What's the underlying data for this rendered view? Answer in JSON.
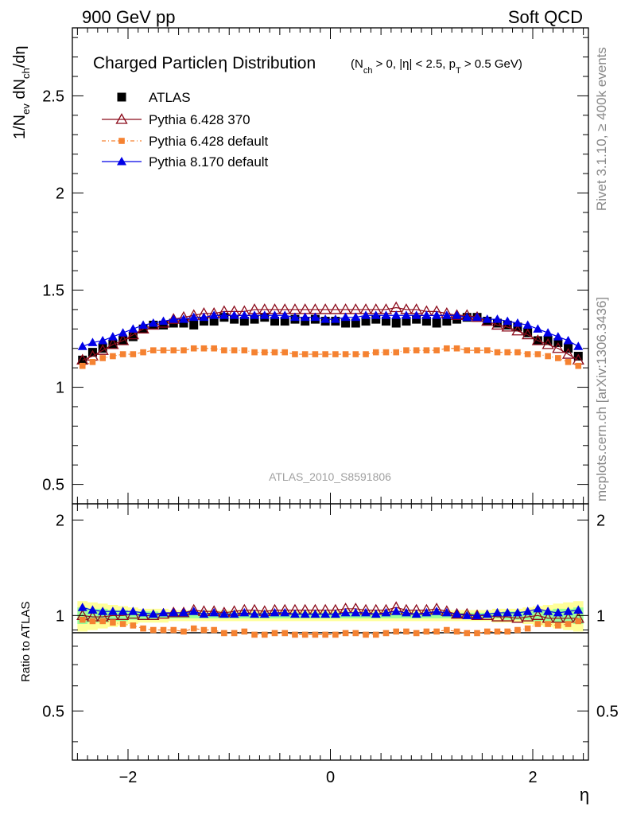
{
  "header": {
    "left": "900 GeV pp",
    "right": "Soft QCD"
  },
  "side": {
    "rivet": "Rivet 3.1.10, ≥ 400k events",
    "mcplots": "mcplots.cern.ch [arXiv:1306.3436]"
  },
  "watermark": "ATLAS_2010_S8591806",
  "colors": {
    "atlas": "#000000",
    "p6_370": "#8b0a1a",
    "p6_default": "#f58231",
    "p8_default": "#0000e6",
    "band_yellow": "#ffff99",
    "band_green": "#99ff99"
  },
  "chart_data": [
    {
      "type": "scatter",
      "panel": "main",
      "title": "Charged Particle",
      "title_eta": "η",
      "title_rest": "Distribution",
      "title_cuts": "(N_ch > 0, |η| < 2.5, p_T > 0.5 GeV)",
      "cuts_parts": [
        "(N",
        "ch",
        " > 0, |",
        "η",
        "| < 2.5, p",
        "T",
        " > 0.5 GeV)"
      ],
      "ylabel_parts": [
        "1/N",
        "ev",
        " dN",
        "ch",
        "/dη"
      ],
      "xlim": [
        -2.55,
        2.55
      ],
      "ylim": [
        0.4,
        2.85
      ],
      "yticks": [
        0.5,
        1,
        1.5,
        2,
        2.5
      ],
      "ytick_labels": [
        "0.5",
        "1",
        "1.5",
        "2",
        "2.5"
      ],
      "legend_position": "top-left",
      "x": [
        -2.45,
        -2.35,
        -2.25,
        -2.15,
        -2.05,
        -1.95,
        -1.85,
        -1.75,
        -1.65,
        -1.55,
        -1.45,
        -1.35,
        -1.25,
        -1.15,
        -1.05,
        -0.95,
        -0.85,
        -0.75,
        -0.65,
        -0.55,
        -0.45,
        -0.35,
        -0.25,
        -0.15,
        -0.05,
        0.05,
        0.15,
        0.25,
        0.35,
        0.45,
        0.55,
        0.65,
        0.75,
        0.85,
        0.95,
        1.05,
        1.15,
        1.25,
        1.35,
        1.45,
        1.55,
        1.65,
        1.75,
        1.85,
        1.95,
        2.05,
        2.15,
        2.25,
        2.35,
        2.45
      ],
      "series": [
        {
          "name": "ATLAS",
          "marker": "square",
          "values": [
            1.14,
            1.18,
            1.2,
            1.22,
            1.24,
            1.26,
            1.3,
            1.32,
            1.32,
            1.33,
            1.33,
            1.32,
            1.34,
            1.34,
            1.36,
            1.35,
            1.34,
            1.35,
            1.36,
            1.34,
            1.34,
            1.35,
            1.34,
            1.35,
            1.34,
            1.34,
            1.33,
            1.33,
            1.34,
            1.35,
            1.34,
            1.33,
            1.34,
            1.35,
            1.34,
            1.33,
            1.34,
            1.35,
            1.36,
            1.36,
            1.34,
            1.33,
            1.32,
            1.31,
            1.28,
            1.24,
            1.24,
            1.23,
            1.2,
            1.16
          ]
        },
        {
          "name": "Pythia 6.428 370",
          "marker": "open-triangle",
          "values": [
            1.14,
            1.16,
            1.19,
            1.22,
            1.24,
            1.27,
            1.3,
            1.32,
            1.33,
            1.35,
            1.36,
            1.37,
            1.38,
            1.38,
            1.39,
            1.39,
            1.39,
            1.4,
            1.4,
            1.4,
            1.4,
            1.4,
            1.4,
            1.4,
            1.4,
            1.4,
            1.4,
            1.4,
            1.4,
            1.4,
            1.4,
            1.41,
            1.4,
            1.4,
            1.39,
            1.39,
            1.38,
            1.37,
            1.37,
            1.36,
            1.34,
            1.32,
            1.31,
            1.29,
            1.27,
            1.24,
            1.22,
            1.2,
            1.17,
            1.14
          ]
        },
        {
          "name": "Pythia 6.428 default",
          "marker": "small-square",
          "values": [
            1.11,
            1.13,
            1.15,
            1.16,
            1.17,
            1.17,
            1.18,
            1.19,
            1.19,
            1.19,
            1.19,
            1.2,
            1.2,
            1.2,
            1.19,
            1.19,
            1.19,
            1.18,
            1.18,
            1.18,
            1.18,
            1.17,
            1.17,
            1.17,
            1.17,
            1.17,
            1.17,
            1.17,
            1.17,
            1.18,
            1.18,
            1.18,
            1.19,
            1.19,
            1.19,
            1.19,
            1.2,
            1.2,
            1.19,
            1.19,
            1.19,
            1.18,
            1.18,
            1.18,
            1.17,
            1.17,
            1.16,
            1.15,
            1.13,
            1.11
          ]
        },
        {
          "name": "Pythia 8.170 default",
          "marker": "filled-triangle",
          "values": [
            1.21,
            1.23,
            1.24,
            1.26,
            1.28,
            1.3,
            1.32,
            1.33,
            1.34,
            1.35,
            1.35,
            1.36,
            1.36,
            1.37,
            1.37,
            1.37,
            1.37,
            1.37,
            1.37,
            1.37,
            1.37,
            1.36,
            1.36,
            1.36,
            1.35,
            1.35,
            1.36,
            1.36,
            1.37,
            1.37,
            1.37,
            1.37,
            1.37,
            1.37,
            1.37,
            1.37,
            1.37,
            1.37,
            1.36,
            1.36,
            1.35,
            1.35,
            1.34,
            1.33,
            1.32,
            1.3,
            1.28,
            1.26,
            1.24,
            1.21
          ]
        }
      ]
    },
    {
      "type": "scatter",
      "panel": "ratio",
      "ylabel": "Ratio to ATLAS",
      "xlabel": "η",
      "xlim": [
        -2.55,
        2.55
      ],
      "ylim": [
        0.35,
        2.25
      ],
      "xticks": [
        -2,
        0,
        2
      ],
      "xtick_labels": [
        "−2",
        "0",
        "2"
      ],
      "yticks": [
        0.5,
        1,
        2
      ],
      "ytick_labels": [
        "0.5",
        "1",
        "2"
      ],
      "band_yellow": [
        0.11,
        0.1,
        0.09,
        0.08,
        0.07,
        0.06,
        0.05,
        0.05,
        0.05,
        0.04,
        0.04,
        0.04,
        0.04,
        0.04,
        0.04,
        0.04,
        0.04,
        0.04,
        0.04,
        0.04,
        0.04,
        0.04,
        0.04,
        0.04,
        0.04,
        0.04,
        0.04,
        0.04,
        0.04,
        0.04,
        0.04,
        0.04,
        0.04,
        0.04,
        0.04,
        0.04,
        0.04,
        0.04,
        0.04,
        0.04,
        0.04,
        0.05,
        0.05,
        0.05,
        0.06,
        0.07,
        0.08,
        0.09,
        0.1,
        0.11
      ],
      "band_green": [
        0.06,
        0.05,
        0.05,
        0.04,
        0.04,
        0.03,
        0.03,
        0.03,
        0.02,
        0.02,
        0.02,
        0.02,
        0.02,
        0.02,
        0.02,
        0.02,
        0.02,
        0.02,
        0.02,
        0.02,
        0.02,
        0.02,
        0.02,
        0.02,
        0.02,
        0.02,
        0.02,
        0.02,
        0.02,
        0.02,
        0.02,
        0.02,
        0.02,
        0.02,
        0.02,
        0.02,
        0.02,
        0.02,
        0.02,
        0.02,
        0.02,
        0.02,
        0.03,
        0.03,
        0.03,
        0.04,
        0.04,
        0.05,
        0.05,
        0.06
      ],
      "series": [
        {
          "name": "Pythia 6.428 370",
          "values": [
            1.0,
            0.99,
            0.99,
            1.0,
            1.0,
            1.01,
            1.0,
            1.0,
            1.01,
            1.02,
            1.02,
            1.04,
            1.03,
            1.03,
            1.02,
            1.03,
            1.04,
            1.04,
            1.03,
            1.04,
            1.04,
            1.04,
            1.04,
            1.04,
            1.04,
            1.04,
            1.05,
            1.05,
            1.04,
            1.04,
            1.04,
            1.06,
            1.04,
            1.04,
            1.04,
            1.05,
            1.03,
            1.01,
            1.01,
            1.0,
            1.0,
            0.99,
            0.99,
            0.98,
            0.99,
            1.0,
            0.98,
            0.98,
            0.98,
            0.98
          ]
        },
        {
          "name": "Pythia 6.428 default",
          "values": [
            0.97,
            0.96,
            0.96,
            0.95,
            0.94,
            0.93,
            0.91,
            0.9,
            0.9,
            0.9,
            0.89,
            0.91,
            0.9,
            0.9,
            0.88,
            0.88,
            0.89,
            0.87,
            0.87,
            0.88,
            0.88,
            0.87,
            0.87,
            0.87,
            0.87,
            0.87,
            0.88,
            0.88,
            0.87,
            0.87,
            0.88,
            0.89,
            0.89,
            0.88,
            0.89,
            0.89,
            0.9,
            0.89,
            0.88,
            0.88,
            0.89,
            0.89,
            0.89,
            0.9,
            0.91,
            0.94,
            0.94,
            0.93,
            0.94,
            0.96
          ]
        },
        {
          "name": "Pythia 8.170 default",
          "values": [
            1.06,
            1.04,
            1.03,
            1.03,
            1.03,
            1.03,
            1.02,
            1.01,
            1.02,
            1.02,
            1.02,
            1.03,
            1.01,
            1.02,
            1.01,
            1.01,
            1.02,
            1.01,
            1.01,
            1.02,
            1.02,
            1.01,
            1.01,
            1.01,
            1.01,
            1.01,
            1.02,
            1.02,
            1.02,
            1.01,
            1.02,
            1.03,
            1.02,
            1.01,
            1.02,
            1.03,
            1.02,
            1.01,
            1.0,
            1.0,
            1.01,
            1.02,
            1.02,
            1.02,
            1.03,
            1.05,
            1.03,
            1.02,
            1.03,
            1.04
          ]
        }
      ]
    }
  ]
}
